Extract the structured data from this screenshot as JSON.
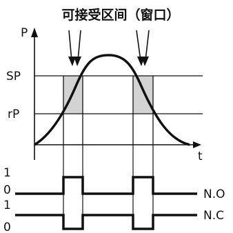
{
  "diagram": {
    "title": "可接受区间（窗口）",
    "y_axis_label": "P",
    "x_axis_label": "t",
    "threshold_high": "SP",
    "threshold_low": "rP",
    "signal_levels": {
      "high": "1",
      "low": "0"
    },
    "outputs": {
      "normally_open": "N.O",
      "normally_closed": "N.C"
    }
  }
}
